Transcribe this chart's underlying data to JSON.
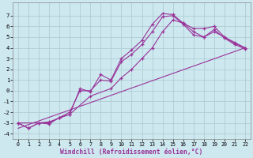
{
  "xlabel": "Windchill (Refroidissement éolien,°C)",
  "xlim": [
    -0.5,
    22.5
  ],
  "ylim": [
    -4.5,
    8.2
  ],
  "xticks": [
    0,
    1,
    2,
    3,
    4,
    5,
    6,
    7,
    8,
    9,
    10,
    11,
    12,
    13,
    14,
    15,
    16,
    17,
    18,
    19,
    20,
    21,
    22
  ],
  "yticks": [
    -4,
    -3,
    -2,
    -1,
    0,
    1,
    2,
    3,
    4,
    5,
    6,
    7
  ],
  "bg_color": "#cde8ef",
  "grid_color": "#b0cdd5",
  "line_color": "#993399",
  "series": [
    {
      "x": [
        0,
        1,
        2,
        3,
        4,
        5,
        6,
        7,
        8,
        9,
        10,
        11,
        12,
        13,
        14,
        15,
        16,
        17,
        18,
        19,
        20,
        21,
        22
      ],
      "y": [
        -3.0,
        -3.5,
        -3.0,
        -3.0,
        -2.5,
        -2.2,
        0.2,
        -0.1,
        1.5,
        1.0,
        3.0,
        3.8,
        4.7,
        6.2,
        7.2,
        7.1,
        6.3,
        5.8,
        5.8,
        6.0,
        5.0,
        4.4,
        4.0
      ],
      "marker": true
    },
    {
      "x": [
        0,
        1,
        2,
        3,
        4,
        5,
        6,
        7,
        8,
        9,
        10,
        11,
        12,
        13,
        14,
        15,
        16,
        17,
        18,
        19,
        20,
        21,
        22
      ],
      "y": [
        -3.0,
        -3.5,
        -3.0,
        -3.1,
        -2.5,
        -2.0,
        0.0,
        -0.0,
        1.0,
        0.9,
        2.7,
        3.4,
        4.3,
        5.5,
        6.9,
        7.0,
        6.2,
        5.2,
        5.0,
        5.7,
        4.9,
        4.3,
        3.9
      ],
      "marker": true
    },
    {
      "x": [
        0,
        2,
        3,
        5,
        7,
        9,
        10,
        11,
        12,
        13,
        14,
        15,
        16,
        17,
        18,
        19,
        20,
        21,
        22
      ],
      "y": [
        -3.0,
        -3.0,
        -2.9,
        -2.2,
        -0.5,
        0.2,
        1.2,
        2.0,
        3.0,
        4.0,
        5.5,
        6.6,
        6.3,
        5.5,
        5.0,
        5.5,
        5.0,
        4.5,
        4.0
      ],
      "marker": true
    },
    {
      "x": [
        0,
        22
      ],
      "y": [
        -3.5,
        4.0
      ],
      "marker": false
    }
  ]
}
